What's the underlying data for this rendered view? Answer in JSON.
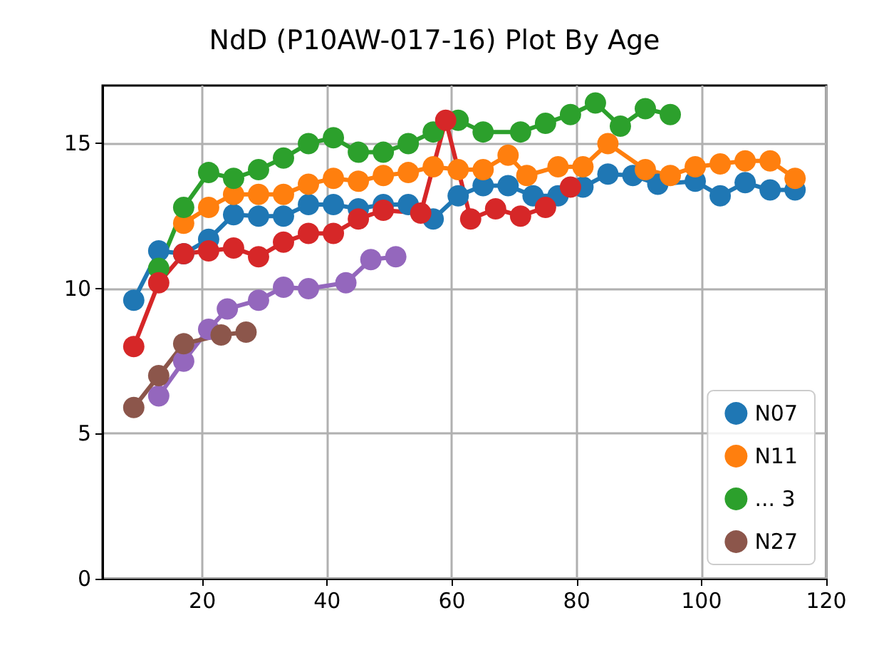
{
  "chart_data": {
    "type": "line",
    "title": "NdD (P10AW-017-16) Plot By Age",
    "xlim": [
      4,
      120
    ],
    "xticks": [
      20,
      40,
      60,
      80,
      100,
      120
    ],
    "ylim": [
      0,
      17
    ],
    "yticks": [
      0,
      5,
      10,
      15
    ],
    "grid": true,
    "legend": "bottom right",
    "marker": "circle",
    "line_style": "solid",
    "series": [
      {
        "name": "N07",
        "color": "#1f77b4",
        "x": [
          9,
          13,
          17,
          21,
          25,
          29,
          33,
          37,
          41,
          45,
          49,
          53,
          57,
          61,
          65,
          69,
          73,
          77,
          81,
          85,
          89,
          93,
          99,
          103,
          107,
          111,
          115
        ],
        "values": [
          9.6,
          11.3,
          11.2,
          11.7,
          12.55,
          12.5,
          12.5,
          12.9,
          12.9,
          12.75,
          12.9,
          12.9,
          12.4,
          13.2,
          13.55,
          13.55,
          13.2,
          13.2,
          13.5,
          13.95,
          13.9,
          13.6,
          13.7,
          13.2,
          13.65,
          13.4,
          13.4
        ]
      },
      {
        "name": "N11",
        "color": "#ff7f0e",
        "x": [
          17,
          21,
          25,
          29,
          33,
          37,
          41,
          45,
          49,
          53,
          57,
          61,
          65,
          69,
          72,
          77,
          81,
          85,
          91,
          95,
          99,
          103,
          107,
          111,
          115
        ],
        "values": [
          12.25,
          12.8,
          13.25,
          13.25,
          13.25,
          13.6,
          13.8,
          13.7,
          13.9,
          14.0,
          14.2,
          14.1,
          14.1,
          14.6,
          13.9,
          14.2,
          14.2,
          15.0,
          14.1,
          13.9,
          14.2,
          14.3,
          14.4,
          14.4,
          13.8
        ]
      },
      {
        "name": "... 3",
        "color": "#2ca02c",
        "x": [
          13,
          17,
          21,
          25,
          29,
          33,
          37,
          41,
          45,
          49,
          53,
          57,
          61,
          65,
          71,
          75,
          79,
          83,
          87,
          91,
          95
        ],
        "values": [
          10.7,
          12.8,
          14.0,
          13.8,
          14.1,
          14.5,
          15.0,
          15.2,
          14.7,
          14.7,
          15.0,
          15.4,
          15.8,
          15.4,
          15.4,
          15.7,
          16.0,
          16.4,
          15.6,
          16.2,
          16.0
        ]
      },
      {
        "color": "#d62728",
        "x": [
          9,
          13,
          17,
          21,
          25,
          29,
          33,
          37,
          41,
          45,
          49,
          55,
          59,
          63,
          67,
          71,
          75,
          79
        ],
        "values": [
          8.0,
          10.2,
          11.2,
          11.3,
          11.4,
          11.1,
          11.6,
          11.9,
          11.9,
          12.4,
          12.7,
          12.6,
          15.8,
          12.4,
          12.75,
          12.5,
          12.8,
          13.5
        ]
      },
      {
        "color": "#9467bd",
        "x": [
          13,
          17,
          21,
          24,
          29,
          33,
          37,
          43,
          47,
          51
        ],
        "values": [
          6.3,
          7.5,
          8.6,
          9.3,
          9.6,
          10.05,
          10.0,
          10.2,
          11.0,
          11.1
        ]
      },
      {
        "name": "N27",
        "color": "#8c564b",
        "x": [
          9,
          13,
          17,
          23,
          27
        ],
        "values": [
          5.9,
          7.0,
          8.1,
          8.4,
          8.5
        ]
      }
    ]
  }
}
